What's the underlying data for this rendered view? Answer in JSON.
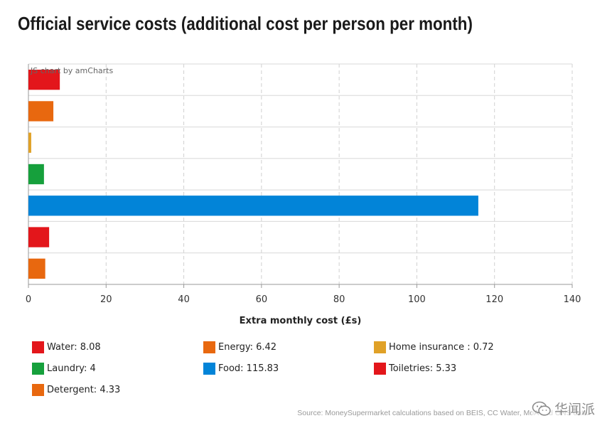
{
  "chart_data": {
    "type": "bar",
    "orientation": "horizontal",
    "title": "Official service costs (additional cost per person per month)",
    "xlabel": "Extra monthly cost (£s)",
    "ylabel": "",
    "xlim": [
      0,
      140
    ],
    "x_ticks": [
      0,
      20,
      40,
      60,
      80,
      100,
      120,
      140
    ],
    "grid": true,
    "legend_position": "bottom",
    "credit": "JS chart by amCharts",
    "categories": [
      "Water",
      "Energy",
      "Home insurance ",
      "Laundry",
      "Food",
      "Toiletries",
      "Detergent"
    ],
    "values": [
      8.08,
      6.42,
      0.72,
      4,
      115.83,
      5.33,
      4.33
    ],
    "colors": [
      "#e3161b",
      "#e8680f",
      "#e0a127",
      "#16a03c",
      "#0284d8",
      "#e3161b",
      "#e8680f"
    ],
    "legend": [
      {
        "label": "Water: 8.08",
        "color": "#e3161b"
      },
      {
        "label": "Energy: 6.42",
        "color": "#e8680f"
      },
      {
        "label": "Home insurance : 0.72",
        "color": "#e0a127"
      },
      {
        "label": "Laundry: 4",
        "color": "#16a03c"
      },
      {
        "label": "Food: 115.83",
        "color": "#0284d8"
      },
      {
        "label": "Toiletries: 5.33",
        "color": "#e3161b"
      },
      {
        "label": "Detergent: 4.33",
        "color": "#e8680f"
      }
    ],
    "source": "Source: MoneySupermarket calculations based on BEIS, CC Water, MoA and ONS data"
  },
  "watermark": "华闻派"
}
